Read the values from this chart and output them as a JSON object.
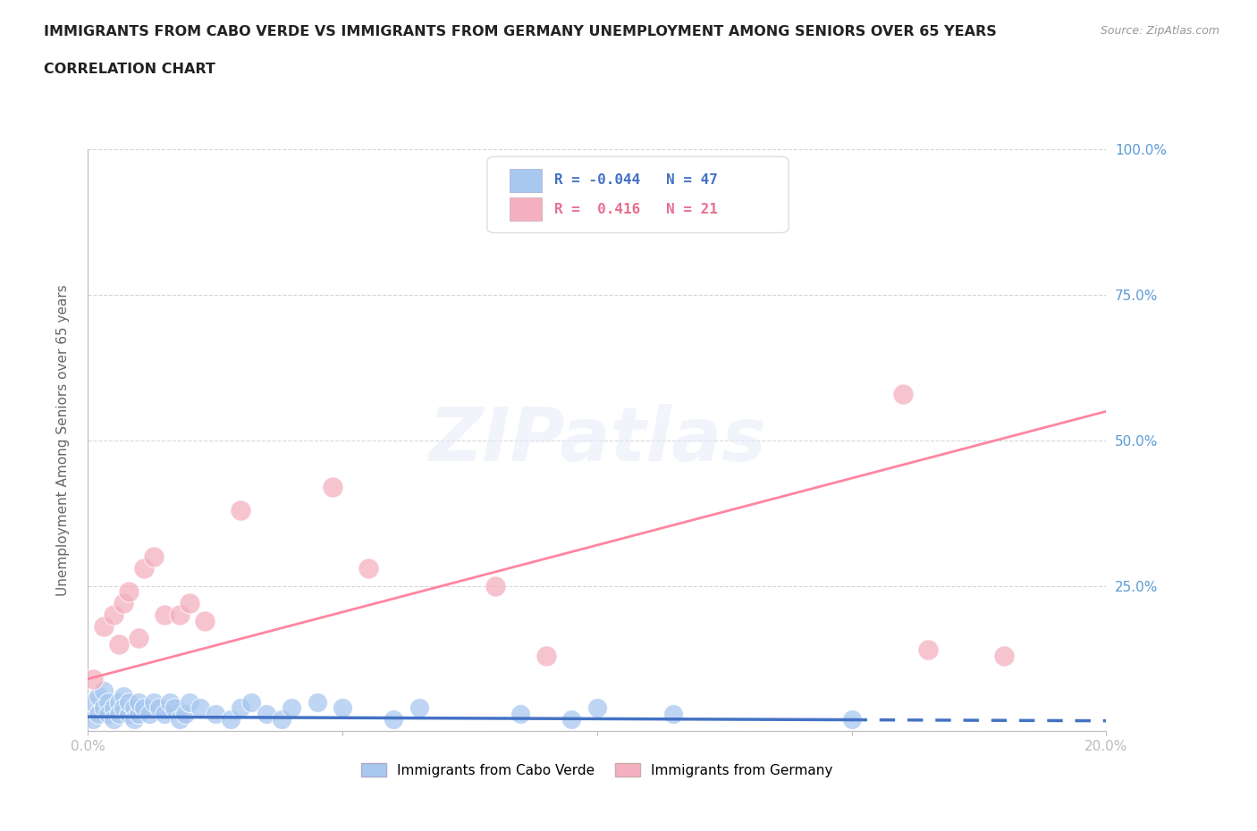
{
  "title_line1": "IMMIGRANTS FROM CABO VERDE VS IMMIGRANTS FROM GERMANY UNEMPLOYMENT AMONG SENIORS OVER 65 YEARS",
  "title_line2": "CORRELATION CHART",
  "source_text": "Source: ZipAtlas.com",
  "ylabel": "Unemployment Among Seniors over 65 years",
  "x_min": 0.0,
  "x_max": 0.2,
  "y_min": 0.0,
  "y_max": 1.0,
  "cabo_verde_color": "#A8C8F0",
  "germany_color": "#F4B0C0",
  "cabo_verde_line_color": "#4472C4",
  "germany_line_color": "#FF85A0",
  "cabo_verde_R": -0.044,
  "cabo_verde_N": 47,
  "germany_R": 0.416,
  "germany_N": 21,
  "cabo_verde_x": [
    0.001,
    0.001,
    0.002,
    0.002,
    0.003,
    0.003,
    0.004,
    0.004,
    0.005,
    0.005,
    0.006,
    0.006,
    0.007,
    0.007,
    0.008,
    0.008,
    0.009,
    0.009,
    0.01,
    0.01,
    0.011,
    0.012,
    0.013,
    0.014,
    0.015,
    0.016,
    0.017,
    0.018,
    0.019,
    0.02,
    0.022,
    0.025,
    0.028,
    0.03,
    0.032,
    0.035,
    0.038,
    0.04,
    0.045,
    0.05,
    0.06,
    0.065,
    0.085,
    0.095,
    0.1,
    0.115,
    0.15
  ],
  "cabo_verde_y": [
    0.02,
    0.05,
    0.03,
    0.06,
    0.04,
    0.07,
    0.05,
    0.03,
    0.04,
    0.02,
    0.05,
    0.03,
    0.06,
    0.04,
    0.03,
    0.05,
    0.04,
    0.02,
    0.03,
    0.05,
    0.04,
    0.03,
    0.05,
    0.04,
    0.03,
    0.05,
    0.04,
    0.02,
    0.03,
    0.05,
    0.04,
    0.03,
    0.02,
    0.04,
    0.05,
    0.03,
    0.02,
    0.04,
    0.05,
    0.04,
    0.02,
    0.04,
    0.03,
    0.02,
    0.04,
    0.03,
    0.02
  ],
  "germany_x": [
    0.001,
    0.003,
    0.005,
    0.006,
    0.007,
    0.008,
    0.01,
    0.011,
    0.013,
    0.015,
    0.018,
    0.02,
    0.023,
    0.03,
    0.048,
    0.055,
    0.08,
    0.09,
    0.16,
    0.165,
    0.18
  ],
  "germany_y": [
    0.09,
    0.18,
    0.2,
    0.15,
    0.22,
    0.24,
    0.16,
    0.28,
    0.3,
    0.2,
    0.2,
    0.22,
    0.19,
    0.38,
    0.42,
    0.28,
    0.25,
    0.13,
    0.58,
    0.14,
    0.13
  ],
  "germany_line_y0": 0.09,
  "germany_line_y1": 0.55,
  "cabo_verde_line_y0": 0.025,
  "cabo_verde_line_y1": 0.018,
  "watermark_text": "ZIPatlas",
  "background_color": "#FFFFFF",
  "grid_color": "#CCCCCC",
  "tick_color": "#5B9BD5",
  "axis_label_color": "#666666"
}
